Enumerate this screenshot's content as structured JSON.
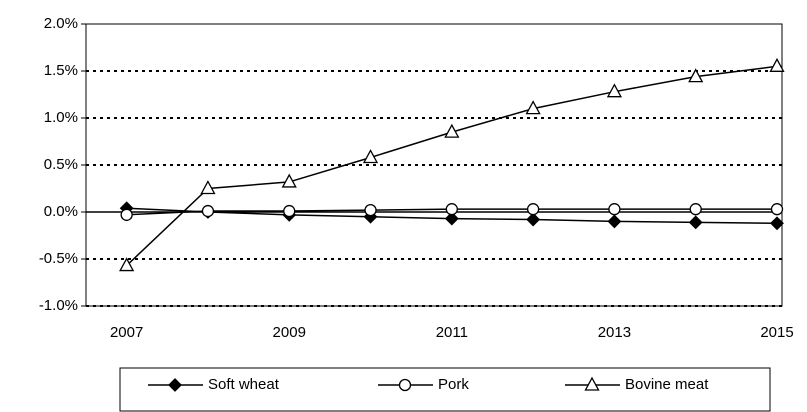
{
  "chart_data": {
    "type": "line",
    "x": [
      2007,
      2008,
      2009,
      2010,
      2011,
      2012,
      2013,
      2014,
      2015
    ],
    "xlim": [
      2006.5,
      2015
    ],
    "xticks": [
      2007,
      2009,
      2011,
      2013,
      2015
    ],
    "ylim": [
      -1.0,
      2.0
    ],
    "yticks": [
      {
        "value": -1.0,
        "label": "-1.0%"
      },
      {
        "value": -0.5,
        "label": "-0.5%"
      },
      {
        "value": 0,
        "label": "0.0%"
      },
      {
        "value": 0.5,
        "label": "0.5%"
      },
      {
        "value": 1.0,
        "label": "1.0%"
      },
      {
        "value": 1.5,
        "label": "1.5%"
      },
      {
        "value": 2.0,
        "label": "2.0%"
      }
    ],
    "grid": true,
    "legend": "bottom",
    "series": [
      {
        "name": "Soft wheat",
        "color": "#000000",
        "marker": "diamond",
        "values": [
          0.04,
          0.0,
          -0.03,
          -0.05,
          -0.07,
          -0.08,
          -0.1,
          -0.11,
          -0.12
        ]
      },
      {
        "name": "Pork",
        "color": "#000000",
        "marker": "circle",
        "values": [
          -0.03,
          0.01,
          0.01,
          0.02,
          0.03,
          0.03,
          0.03,
          0.03,
          0.03
        ]
      },
      {
        "name": "Bovine meat",
        "color": "#000000",
        "marker": "triangle",
        "values": [
          -0.57,
          0.25,
          0.32,
          0.58,
          0.85,
          1.1,
          1.28,
          1.44,
          1.55
        ]
      }
    ]
  }
}
